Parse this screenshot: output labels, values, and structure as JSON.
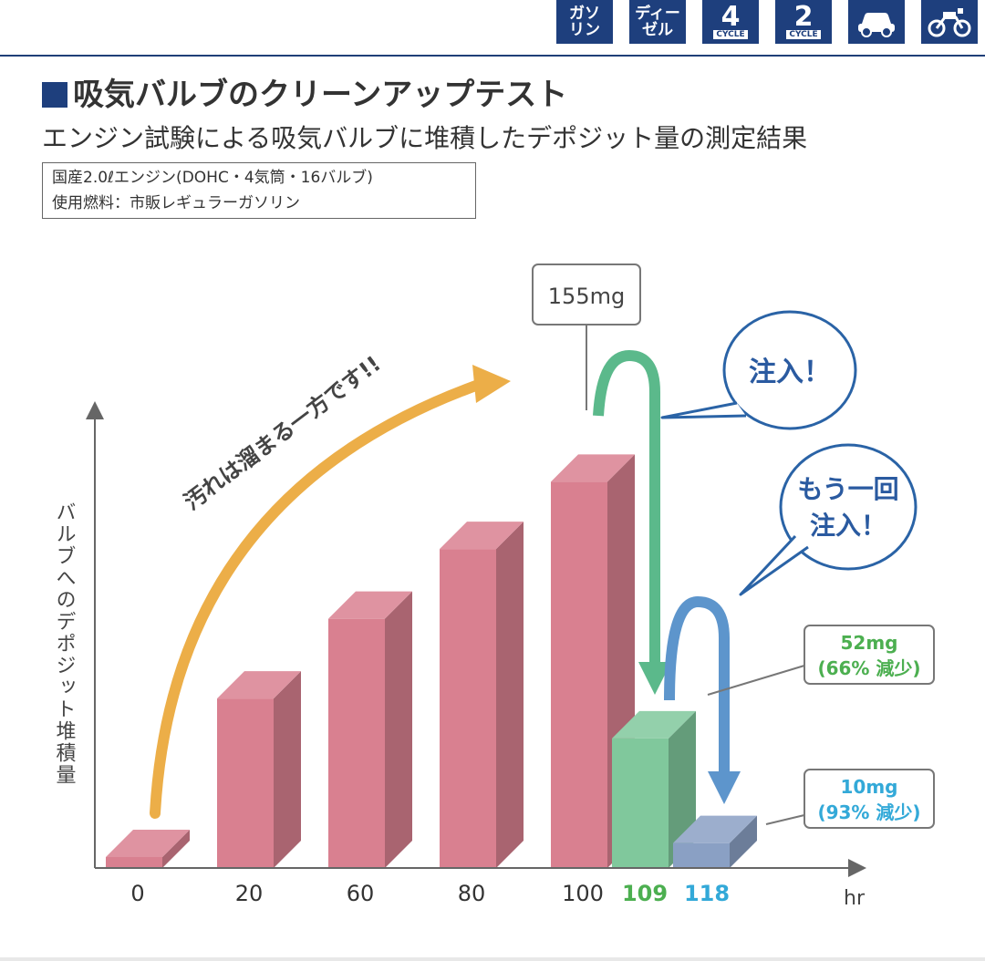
{
  "header": {
    "badges": [
      {
        "name": "gasoline-badge",
        "lines": [
          "ガソ",
          "リン"
        ]
      },
      {
        "name": "diesel-badge",
        "lines": [
          "ディー",
          "ゼル"
        ]
      },
      {
        "name": "4cycle-badge",
        "number": "4",
        "label": "CYCLE"
      },
      {
        "name": "2cycle-badge",
        "number": "2",
        "label": "CYCLE"
      },
      {
        "name": "car-icon"
      },
      {
        "name": "motorcycle-icon"
      }
    ]
  },
  "title": "吸気バルブのクリーンアップテスト",
  "subtitle": "エンジン試験による吸気バルブに堆積したデポジット量の測定結果",
  "spec": {
    "line1": "国産2.0ℓエンジン(DOHC・4気筒・16バルブ)",
    "line2": "使用燃料：市販レギュラーガソリン"
  },
  "chart_data": {
    "type": "bar",
    "ylabel": "バルブへのデポジット堆積量",
    "xlabel": "hr",
    "categories": [
      "0",
      "20",
      "60",
      "80",
      "100",
      "109",
      "118"
    ],
    "values": [
      3,
      68,
      100,
      128,
      155,
      52,
      10
    ],
    "colors": [
      "#d98090",
      "#d98090",
      "#d98090",
      "#d98090",
      "#d98090",
      "#80c89c",
      "#8aa0c4"
    ],
    "label_colors": [
      "#333333",
      "#333333",
      "#333333",
      "#333333",
      "#333333",
      "#4caf50",
      "#33a9d8"
    ],
    "ylim": [
      0,
      180
    ],
    "annotations": {
      "peak_label": "155mg",
      "trend_text": "汚れは溜まる一方です!!",
      "inject1": "注入！",
      "inject2_line1": "もう一回",
      "inject2_line2": "注入！",
      "result1_line1": "52mg",
      "result1_line2": "(66% 減少)",
      "result2_line1": "10mg",
      "result2_line2": "(93% 減少)"
    }
  }
}
